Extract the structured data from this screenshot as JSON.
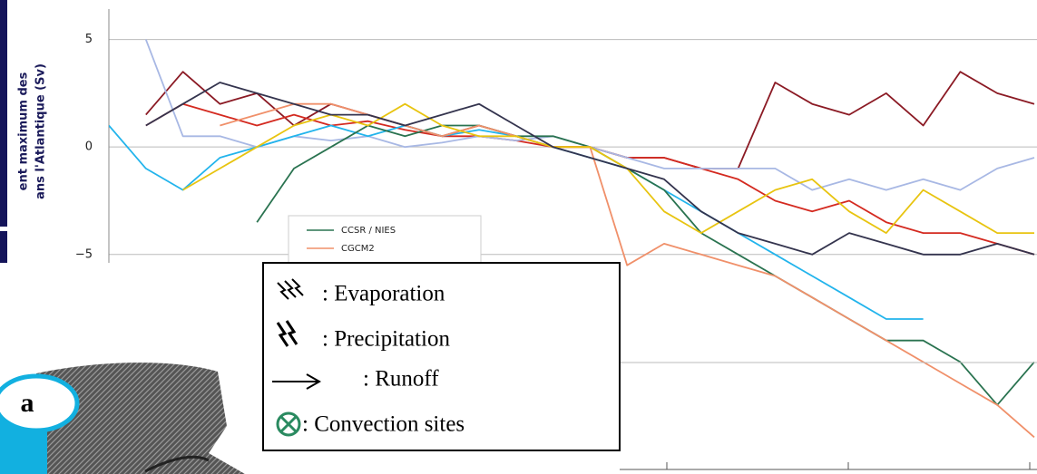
{
  "chart_data": {
    "type": "line",
    "y_label": [
      "ent maximum des",
      "ans l'Atlantique (Sv)"
    ],
    "ylim": [
      -15,
      6.5
    ],
    "yticks": [
      5,
      0,
      {
        "value": -5,
        "label": "−5"
      }
    ],
    "grid": true,
    "series": [
      {
        "color": "#8b1a24",
        "values": [
          null,
          1.5,
          3.5,
          2,
          2.5,
          1,
          2,
          1.5,
          1,
          0.5,
          1,
          0.5,
          0,
          0,
          -0.5,
          -0.5,
          -1,
          -1,
          3,
          2,
          1.5,
          2.5,
          1,
          3.5,
          2.5,
          2
        ]
      },
      {
        "color": "#d42a20",
        "values": [
          null,
          1,
          2,
          1.5,
          1,
          1.5,
          1,
          1.2,
          0.8,
          0.5,
          0.5,
          0.3,
          0,
          0,
          -0.5,
          -0.5,
          -1,
          -1.5,
          -2.5,
          -3,
          -2.5,
          -3.5,
          -4,
          -4,
          -4.5,
          -5
        ]
      },
      {
        "color": "#a8b8e4",
        "values": [
          null,
          5,
          0.5,
          0.5,
          0,
          0.5,
          0.3,
          0.5,
          0,
          0.2,
          0.5,
          0.3,
          0.5,
          0,
          -0.5,
          -1,
          -1,
          -1,
          -1,
          -2,
          -1.5,
          -2,
          -1.5,
          -2,
          -1,
          -0.5
        ]
      },
      {
        "color": "#22b4ec",
        "values": [
          1,
          -1,
          -2,
          -0.5,
          0,
          0.5,
          1,
          0.5,
          1,
          0.5,
          0.8,
          0.5,
          0,
          -0.5,
          -1,
          -2,
          -3,
          -4,
          -5,
          -6,
          -7,
          -8,
          -8,
          null,
          null,
          null
        ]
      },
      {
        "name": "CCSR / NIES",
        "color": "#2a7350",
        "values": [
          null,
          null,
          null,
          null,
          -3.5,
          -1,
          0,
          1,
          0.5,
          1,
          1,
          0.5,
          0.5,
          0,
          -1,
          -2,
          -4,
          -5,
          -6,
          -7,
          -8,
          -9,
          -9,
          -10,
          -12,
          -10
        ]
      },
      {
        "name": "CGCM2",
        "color": "#f0906a",
        "values": [
          null,
          null,
          null,
          1,
          1.5,
          2,
          2,
          1.5,
          1,
          0.5,
          1,
          0.5,
          0,
          0,
          -5.5,
          -4.5,
          -5,
          -5.5,
          -6,
          -7,
          -8,
          -9,
          -10,
          -11,
          -12,
          -13.5
        ]
      },
      {
        "color": "#e8c410",
        "values": [
          null,
          null,
          -2,
          -1,
          0,
          1,
          1.5,
          1,
          2,
          1,
          0.5,
          0.5,
          0,
          0,
          -1,
          -3,
          -4,
          -3,
          -2,
          -1.5,
          -3,
          -4,
          -2,
          -3,
          -4,
          -4
        ]
      },
      {
        "color": "#34344e",
        "values": [
          null,
          1,
          2,
          3,
          2.5,
          2,
          1.5,
          1.5,
          1,
          1.5,
          2,
          1,
          0,
          -0.5,
          -1,
          -1.5,
          -3,
          -4,
          -4.5,
          -5,
          -4,
          -4.5,
          -5,
          -5,
          -4.5,
          -5
        ]
      }
    ]
  },
  "overlay": {
    "items": [
      ": Evaporation",
      ": Precipitation",
      ": Runoff",
      ": Convection sites"
    ]
  },
  "map": {
    "label": "a"
  }
}
